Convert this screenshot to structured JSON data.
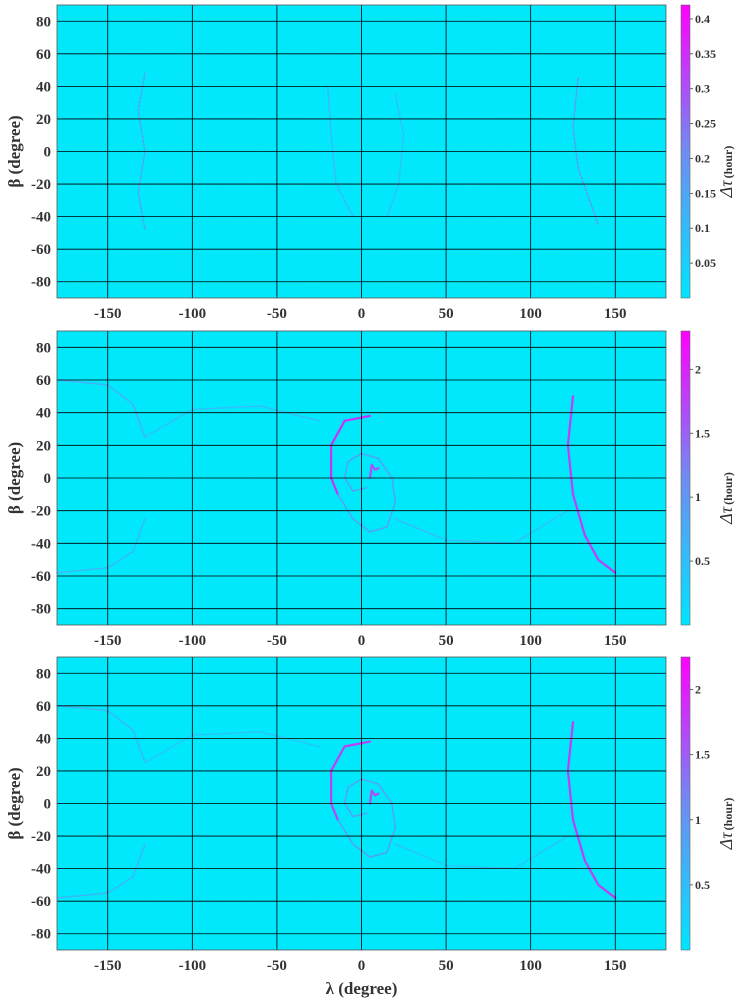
{
  "colors": {
    "low": "#00e5ff",
    "mid": "#6f8cf0",
    "high": "#ff00ff",
    "grid": "#000000",
    "background": "#ffffff"
  },
  "chart_data": [
    {
      "type": "heatmap",
      "panel": "top",
      "xlabel": "",
      "ylabel": "β (degree)",
      "xlim": [
        -180,
        180
      ],
      "ylim": [
        -90,
        90
      ],
      "xticks": [
        "-150",
        "-100",
        "-50",
        "0",
        "50",
        "100",
        "150"
      ],
      "yticks": [
        "80",
        "60",
        "40",
        "20",
        "0",
        "-20",
        "-40",
        "-60",
        "-80"
      ],
      "grid": true,
      "colorbar": {
        "label": "Δτ",
        "unit": "(hour)",
        "range": [
          0,
          0.42
        ],
        "ticks": [
          "0.4",
          "0.35",
          "0.3",
          "0.25",
          "0.2",
          "0.15",
          "0.1",
          "0.05"
        ],
        "tick_values": [
          0.4,
          0.35,
          0.3,
          0.25,
          0.2,
          0.15,
          0.1,
          0.05
        ]
      },
      "features": [
        {
          "kind": "arc",
          "points": [
            [
              -128,
              48
            ],
            [
              -132,
              25
            ],
            [
              -128,
              0
            ],
            [
              -132,
              -25
            ],
            [
              -128,
              -48
            ]
          ],
          "intensity": 0.45
        },
        {
          "kind": "arc",
          "points": [
            [
              128,
              45
            ],
            [
              125,
              15
            ],
            [
              128,
              -10
            ],
            [
              140,
              -45
            ]
          ],
          "intensity": 0.5
        },
        {
          "kind": "arc",
          "points": [
            [
              -20,
              40
            ],
            [
              -18,
              10
            ],
            [
              -15,
              -20
            ],
            [
              -5,
              -40
            ]
          ],
          "intensity": 0.35
        },
        {
          "kind": "arc",
          "points": [
            [
              20,
              35
            ],
            [
              25,
              10
            ],
            [
              22,
              -20
            ],
            [
              15,
              -40
            ]
          ],
          "intensity": 0.3
        }
      ]
    },
    {
      "type": "heatmap",
      "panel": "middle",
      "xlabel": "",
      "ylabel": "β (degree)",
      "xlim": [
        -180,
        180
      ],
      "ylim": [
        -90,
        90
      ],
      "xticks": [
        "-150",
        "-100",
        "-50",
        "0",
        "50",
        "100",
        "150"
      ],
      "yticks": [
        "80",
        "60",
        "40",
        "20",
        "0",
        "-20",
        "-40",
        "-60",
        "-80"
      ],
      "grid": true,
      "colorbar": {
        "label": "Δτ",
        "unit": "(hour)",
        "range": [
          0,
          2.3
        ],
        "ticks": [
          "2",
          "1.5",
          "1",
          "0.5"
        ],
        "tick_values": [
          2,
          1.5,
          1,
          0.5
        ]
      },
      "features": [
        {
          "kind": "arc",
          "points": [
            [
              5,
              38
            ],
            [
              -10,
              35
            ],
            [
              -18,
              20
            ],
            [
              -18,
              0
            ],
            [
              -14,
              -10
            ]
          ],
          "intensity": 0.9
        },
        {
          "kind": "arc",
          "points": [
            [
              -14,
              -10
            ],
            [
              -5,
              -25
            ],
            [
              5,
              -33
            ],
            [
              15,
              -30
            ],
            [
              20,
              -15
            ],
            [
              18,
              0
            ],
            [
              10,
              12
            ],
            [
              0,
              15
            ],
            [
              -8,
              10
            ],
            [
              -10,
              0
            ],
            [
              -5,
              -8
            ],
            [
              3,
              -6
            ]
          ],
          "intensity": 0.45
        },
        {
          "kind": "arc",
          "points": [
            [
              5,
              0
            ],
            [
              6,
              8
            ],
            [
              8,
              5
            ],
            [
              10,
              6
            ]
          ],
          "intensity": 0.8
        },
        {
          "kind": "arc",
          "points": [
            [
              125,
              50
            ],
            [
              122,
              20
            ],
            [
              125,
              -10
            ],
            [
              132,
              -35
            ],
            [
              140,
              -50
            ],
            [
              150,
              -58
            ]
          ],
          "intensity": 0.85
        },
        {
          "kind": "arc",
          "points": [
            [
              -180,
              60
            ],
            [
              -150,
              57
            ],
            [
              -135,
              45
            ],
            [
              -128,
              25
            ]
          ],
          "intensity": 0.35
        },
        {
          "kind": "arc",
          "points": [
            [
              -180,
              -58
            ],
            [
              -150,
              -55
            ],
            [
              -135,
              -45
            ],
            [
              -128,
              -25
            ]
          ],
          "intensity": 0.3
        },
        {
          "kind": "arc",
          "points": [
            [
              -128,
              25
            ],
            [
              -100,
              42
            ],
            [
              -60,
              44
            ],
            [
              -25,
              35
            ]
          ],
          "intensity": 0.25
        },
        {
          "kind": "arc",
          "points": [
            [
              20,
              -25
            ],
            [
              50,
              -38
            ],
            [
              90,
              -40
            ],
            [
              122,
              -20
            ]
          ],
          "intensity": 0.25
        }
      ]
    },
    {
      "type": "heatmap",
      "panel": "bottom",
      "xlabel": "λ (degree)",
      "ylabel": "β (degree)",
      "xlim": [
        -180,
        180
      ],
      "ylim": [
        -90,
        90
      ],
      "xticks": [
        "-150",
        "-100",
        "-50",
        "0",
        "50",
        "100",
        "150"
      ],
      "yticks": [
        "80",
        "60",
        "40",
        "20",
        "0",
        "-20",
        "-40",
        "-60",
        "-80"
      ],
      "grid": true,
      "colorbar": {
        "label": "Δτ",
        "unit": "(hour)",
        "range": [
          0,
          2.25
        ],
        "ticks": [
          "2",
          "1.5",
          "1",
          "0.5"
        ],
        "tick_values": [
          2,
          1.5,
          1,
          0.5
        ]
      },
      "features": [
        {
          "kind": "arc",
          "points": [
            [
              5,
              38
            ],
            [
              -10,
              35
            ],
            [
              -18,
              20
            ],
            [
              -18,
              0
            ],
            [
              -14,
              -10
            ]
          ],
          "intensity": 0.85
        },
        {
          "kind": "arc",
          "points": [
            [
              -14,
              -10
            ],
            [
              -5,
              -25
            ],
            [
              5,
              -33
            ],
            [
              15,
              -30
            ],
            [
              20,
              -15
            ],
            [
              18,
              0
            ],
            [
              10,
              12
            ],
            [
              0,
              15
            ],
            [
              -8,
              10
            ],
            [
              -10,
              0
            ],
            [
              -5,
              -8
            ],
            [
              3,
              -6
            ]
          ],
          "intensity": 0.45
        },
        {
          "kind": "arc",
          "points": [
            [
              5,
              0
            ],
            [
              6,
              8
            ],
            [
              8,
              5
            ],
            [
              10,
              6
            ]
          ],
          "intensity": 0.8
        },
        {
          "kind": "arc",
          "points": [
            [
              125,
              50
            ],
            [
              122,
              20
            ],
            [
              125,
              -10
            ],
            [
              132,
              -35
            ],
            [
              140,
              -50
            ],
            [
              150,
              -58
            ]
          ],
          "intensity": 0.85
        },
        {
          "kind": "arc",
          "points": [
            [
              -180,
              60
            ],
            [
              -150,
              57
            ],
            [
              -135,
              45
            ],
            [
              -128,
              25
            ]
          ],
          "intensity": 0.3
        },
        {
          "kind": "arc",
          "points": [
            [
              -180,
              -58
            ],
            [
              -150,
              -55
            ],
            [
              -135,
              -45
            ],
            [
              -128,
              -25
            ]
          ],
          "intensity": 0.3
        },
        {
          "kind": "arc",
          "points": [
            [
              -128,
              25
            ],
            [
              -100,
              42
            ],
            [
              -60,
              44
            ],
            [
              -25,
              35
            ]
          ],
          "intensity": 0.2
        },
        {
          "kind": "arc",
          "points": [
            [
              20,
              -25
            ],
            [
              50,
              -38
            ],
            [
              90,
              -40
            ],
            [
              122,
              -20
            ]
          ],
          "intensity": 0.2
        }
      ]
    }
  ]
}
